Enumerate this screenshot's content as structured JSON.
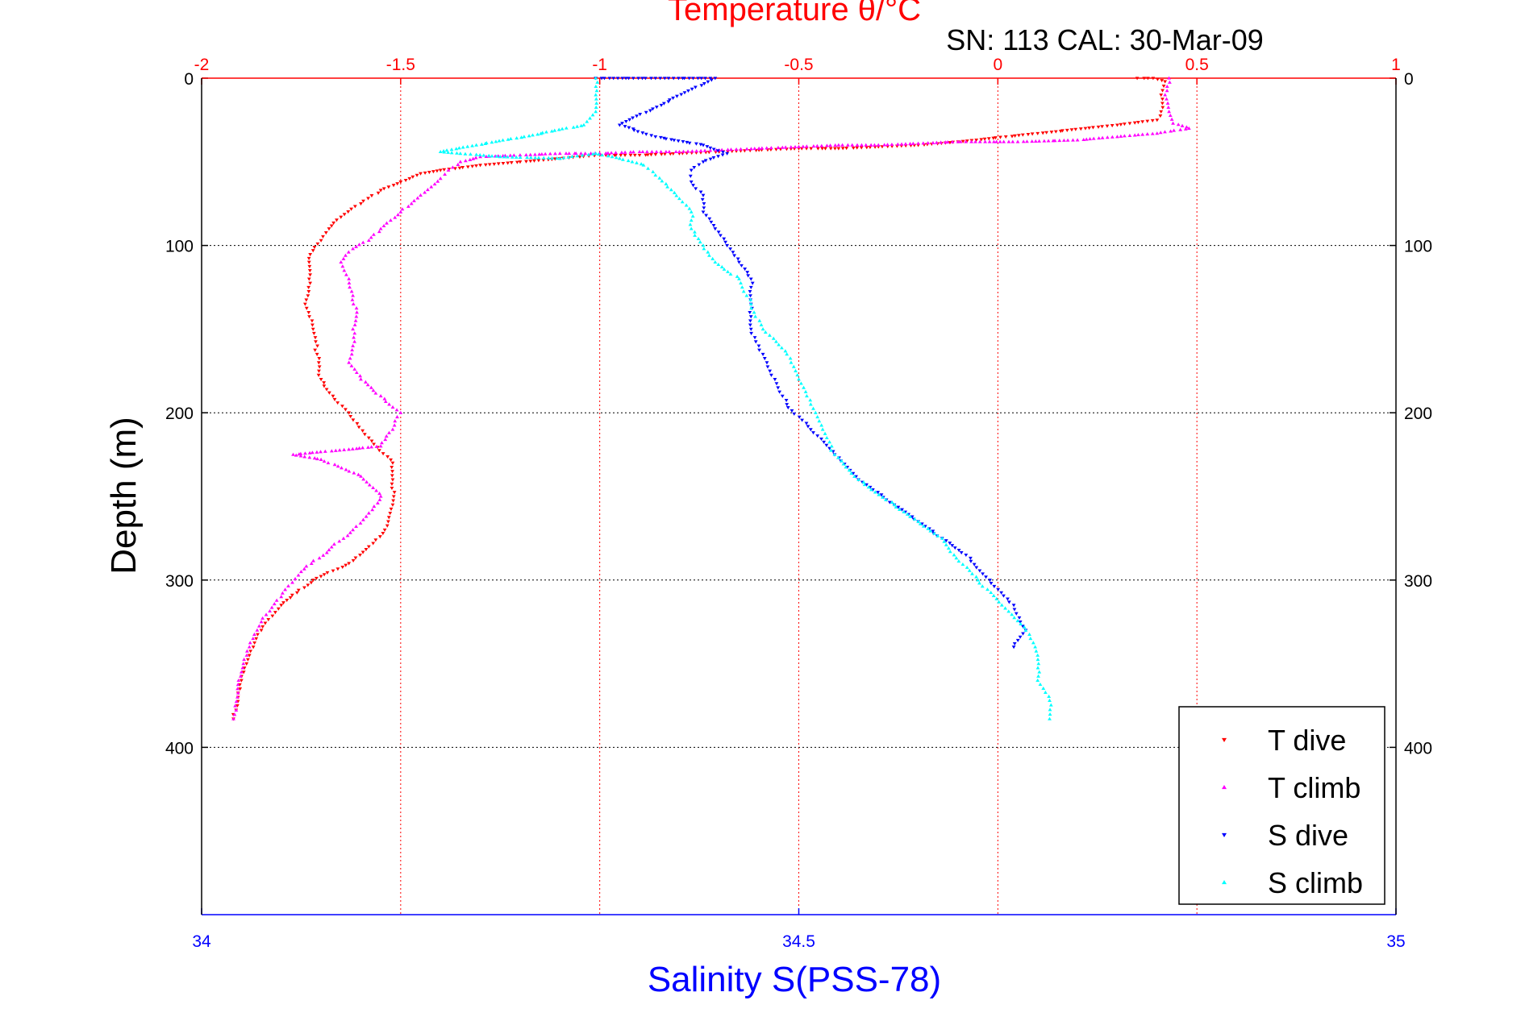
{
  "chart_data": {
    "type": "scatter",
    "title": "Temperature θ/°C",
    "annotation": "SN: 113  CAL: 30-Mar-09",
    "xlabel": "Salinity S(PSS-78)",
    "ylabel": "Depth (m)",
    "x_top": {
      "label": "Temperature θ/°C",
      "lim": [
        -2,
        1
      ],
      "ticks": [
        -2,
        -1.5,
        -1,
        -0.5,
        0,
        0.5,
        1
      ],
      "tick_labels": [
        "-2",
        "-1.5",
        "-1",
        "-0.5",
        "0",
        "0.5",
        "1"
      ],
      "color": "#ff0000"
    },
    "x_bottom": {
      "label": "Salinity S(PSS-78)",
      "lim": [
        34,
        35
      ],
      "ticks": [
        34,
        34.5,
        35
      ],
      "tick_labels": [
        "34",
        "34.5",
        "35"
      ],
      "color": "#0000ff"
    },
    "y": {
      "lim": [
        0,
        500
      ],
      "reversed": true,
      "ticks": [
        0,
        100,
        200,
        300,
        400
      ],
      "tick_labels": [
        "0",
        "100",
        "200",
        "300",
        "400"
      ]
    },
    "grid": true,
    "legend_position": "bottom-right",
    "series": [
      {
        "name": "T dive",
        "axis": "top",
        "marker": "triangle-down",
        "color": "#ff0000",
        "points": [
          [
            0.35,
            0
          ],
          [
            0.39,
            0
          ],
          [
            0.42,
            2
          ],
          [
            0.41,
            10
          ],
          [
            0.41,
            20
          ],
          [
            0.4,
            25
          ],
          [
            0.3,
            28
          ],
          [
            0.22,
            30
          ],
          [
            0.1,
            33
          ],
          [
            0.02,
            35
          ],
          [
            -0.1,
            38
          ],
          [
            -0.2,
            40
          ],
          [
            -0.3,
            41
          ],
          [
            -0.4,
            42
          ],
          [
            -0.5,
            42
          ],
          [
            -0.6,
            43
          ],
          [
            -0.7,
            44
          ],
          [
            -0.8,
            45
          ],
          [
            -0.9,
            46
          ],
          [
            -1.0,
            46
          ],
          [
            -1.05,
            47
          ],
          [
            -1.1,
            48
          ],
          [
            -1.2,
            50
          ],
          [
            -1.3,
            52
          ],
          [
            -1.4,
            55
          ],
          [
            -1.45,
            57
          ],
          [
            -1.5,
            62
          ],
          [
            -1.55,
            67
          ],
          [
            -1.6,
            75
          ],
          [
            -1.65,
            83
          ],
          [
            -1.68,
            90
          ],
          [
            -1.7,
            97
          ],
          [
            -1.72,
            103
          ],
          [
            -1.73,
            110
          ],
          [
            -1.73,
            120
          ],
          [
            -1.74,
            135
          ],
          [
            -1.72,
            150
          ],
          [
            -1.71,
            165
          ],
          [
            -1.7,
            180
          ],
          [
            -1.67,
            190
          ],
          [
            -1.63,
            200
          ],
          [
            -1.58,
            215
          ],
          [
            -1.52,
            230
          ],
          [
            -1.52,
            240
          ],
          [
            -1.52,
            255
          ],
          [
            -1.54,
            270
          ],
          [
            -1.58,
            280
          ],
          [
            -1.63,
            290
          ],
          [
            -1.72,
            300
          ],
          [
            -1.8,
            315
          ],
          [
            -1.85,
            330
          ],
          [
            -1.88,
            345
          ],
          [
            -1.9,
            360
          ],
          [
            -1.91,
            375
          ],
          [
            -1.92,
            383
          ]
        ]
      },
      {
        "name": "T climb",
        "axis": "top",
        "marker": "triangle-up",
        "color": "#ff00ff",
        "points": [
          [
            0.43,
            0
          ],
          [
            0.42,
            10
          ],
          [
            0.43,
            20
          ],
          [
            0.44,
            27
          ],
          [
            0.48,
            30
          ],
          [
            0.4,
            33
          ],
          [
            0.3,
            35
          ],
          [
            0.2,
            37
          ],
          [
            0.05,
            38
          ],
          [
            -0.1,
            38
          ],
          [
            -0.2,
            39
          ],
          [
            -0.3,
            40
          ],
          [
            -0.4,
            40
          ],
          [
            -0.5,
            41
          ],
          [
            -0.6,
            42
          ],
          [
            -0.7,
            43
          ],
          [
            -0.8,
            44
          ],
          [
            -0.9,
            44
          ],
          [
            -1.0,
            45
          ],
          [
            -1.1,
            45
          ],
          [
            -1.2,
            46
          ],
          [
            -1.3,
            47
          ],
          [
            -1.35,
            50
          ],
          [
            -1.38,
            55
          ],
          [
            -1.4,
            60
          ],
          [
            -1.45,
            70
          ],
          [
            -1.5,
            80
          ],
          [
            -1.55,
            90
          ],
          [
            -1.58,
            97
          ],
          [
            -1.62,
            102
          ],
          [
            -1.65,
            110
          ],
          [
            -1.63,
            120
          ],
          [
            -1.62,
            130
          ],
          [
            -1.61,
            140
          ],
          [
            -1.62,
            150
          ],
          [
            -1.62,
            160
          ],
          [
            -1.63,
            170
          ],
          [
            -1.6,
            180
          ],
          [
            -1.55,
            190
          ],
          [
            -1.5,
            200
          ],
          [
            -1.52,
            210
          ],
          [
            -1.55,
            220
          ],
          [
            -1.77,
            225
          ],
          [
            -1.7,
            228
          ],
          [
            -1.6,
            238
          ],
          [
            -1.55,
            250
          ],
          [
            -1.58,
            260
          ],
          [
            -1.62,
            270
          ],
          [
            -1.68,
            282
          ],
          [
            -1.75,
            295
          ],
          [
            -1.8,
            310
          ],
          [
            -1.85,
            325
          ],
          [
            -1.88,
            340
          ],
          [
            -1.9,
            355
          ],
          [
            -1.91,
            370
          ],
          [
            -1.92,
            383
          ]
        ]
      },
      {
        "name": "S dive",
        "axis": "bottom",
        "marker": "triangle-down",
        "color": "#0000ff",
        "points": [
          [
            34.33,
            0
          ],
          [
            34.38,
            0
          ],
          [
            34.43,
            0
          ],
          [
            34.35,
            28
          ],
          [
            34.38,
            35
          ],
          [
            34.42,
            40
          ],
          [
            34.44,
            45
          ],
          [
            34.42,
            50
          ],
          [
            34.41,
            55
          ],
          [
            34.41,
            62
          ],
          [
            34.42,
            70
          ],
          [
            34.42,
            80
          ],
          [
            34.43,
            90
          ],
          [
            34.44,
            100
          ],
          [
            34.45,
            110
          ],
          [
            34.46,
            120
          ],
          [
            34.46,
            135
          ],
          [
            34.46,
            150
          ],
          [
            34.47,
            165
          ],
          [
            34.48,
            180
          ],
          [
            34.49,
            195
          ],
          [
            34.51,
            210
          ],
          [
            34.53,
            225
          ],
          [
            34.55,
            240
          ],
          [
            34.58,
            255
          ],
          [
            34.6,
            265
          ],
          [
            34.62,
            275
          ],
          [
            34.64,
            285
          ],
          [
            34.66,
            300
          ],
          [
            34.68,
            315
          ],
          [
            34.69,
            330
          ],
          [
            34.68,
            340
          ]
        ]
      },
      {
        "name": "S climb",
        "axis": "bottom",
        "marker": "triangle-up",
        "color": "#00ffff",
        "points": [
          [
            34.33,
            0
          ],
          [
            34.33,
            10
          ],
          [
            34.33,
            20
          ],
          [
            34.32,
            28
          ],
          [
            34.27,
            35
          ],
          [
            34.23,
            40
          ],
          [
            34.2,
            44
          ],
          [
            34.25,
            47
          ],
          [
            34.3,
            48
          ],
          [
            34.33,
            45
          ],
          [
            34.35,
            48
          ],
          [
            34.37,
            52
          ],
          [
            34.38,
            58
          ],
          [
            34.39,
            65
          ],
          [
            34.4,
            72
          ],
          [
            34.41,
            80
          ],
          [
            34.41,
            90
          ],
          [
            34.42,
            100
          ],
          [
            34.43,
            110
          ],
          [
            34.45,
            120
          ],
          [
            34.46,
            135
          ],
          [
            34.47,
            150
          ],
          [
            34.49,
            165
          ],
          [
            34.5,
            180
          ],
          [
            34.51,
            195
          ],
          [
            34.52,
            210
          ],
          [
            34.53,
            225
          ],
          [
            34.55,
            240
          ],
          [
            34.58,
            255
          ],
          [
            34.6,
            265
          ],
          [
            34.62,
            275
          ],
          [
            34.63,
            285
          ],
          [
            34.65,
            300
          ],
          [
            34.67,
            315
          ],
          [
            34.69,
            330
          ],
          [
            34.7,
            345
          ],
          [
            34.7,
            360
          ],
          [
            34.71,
            372
          ],
          [
            34.71,
            383
          ]
        ]
      }
    ]
  }
}
